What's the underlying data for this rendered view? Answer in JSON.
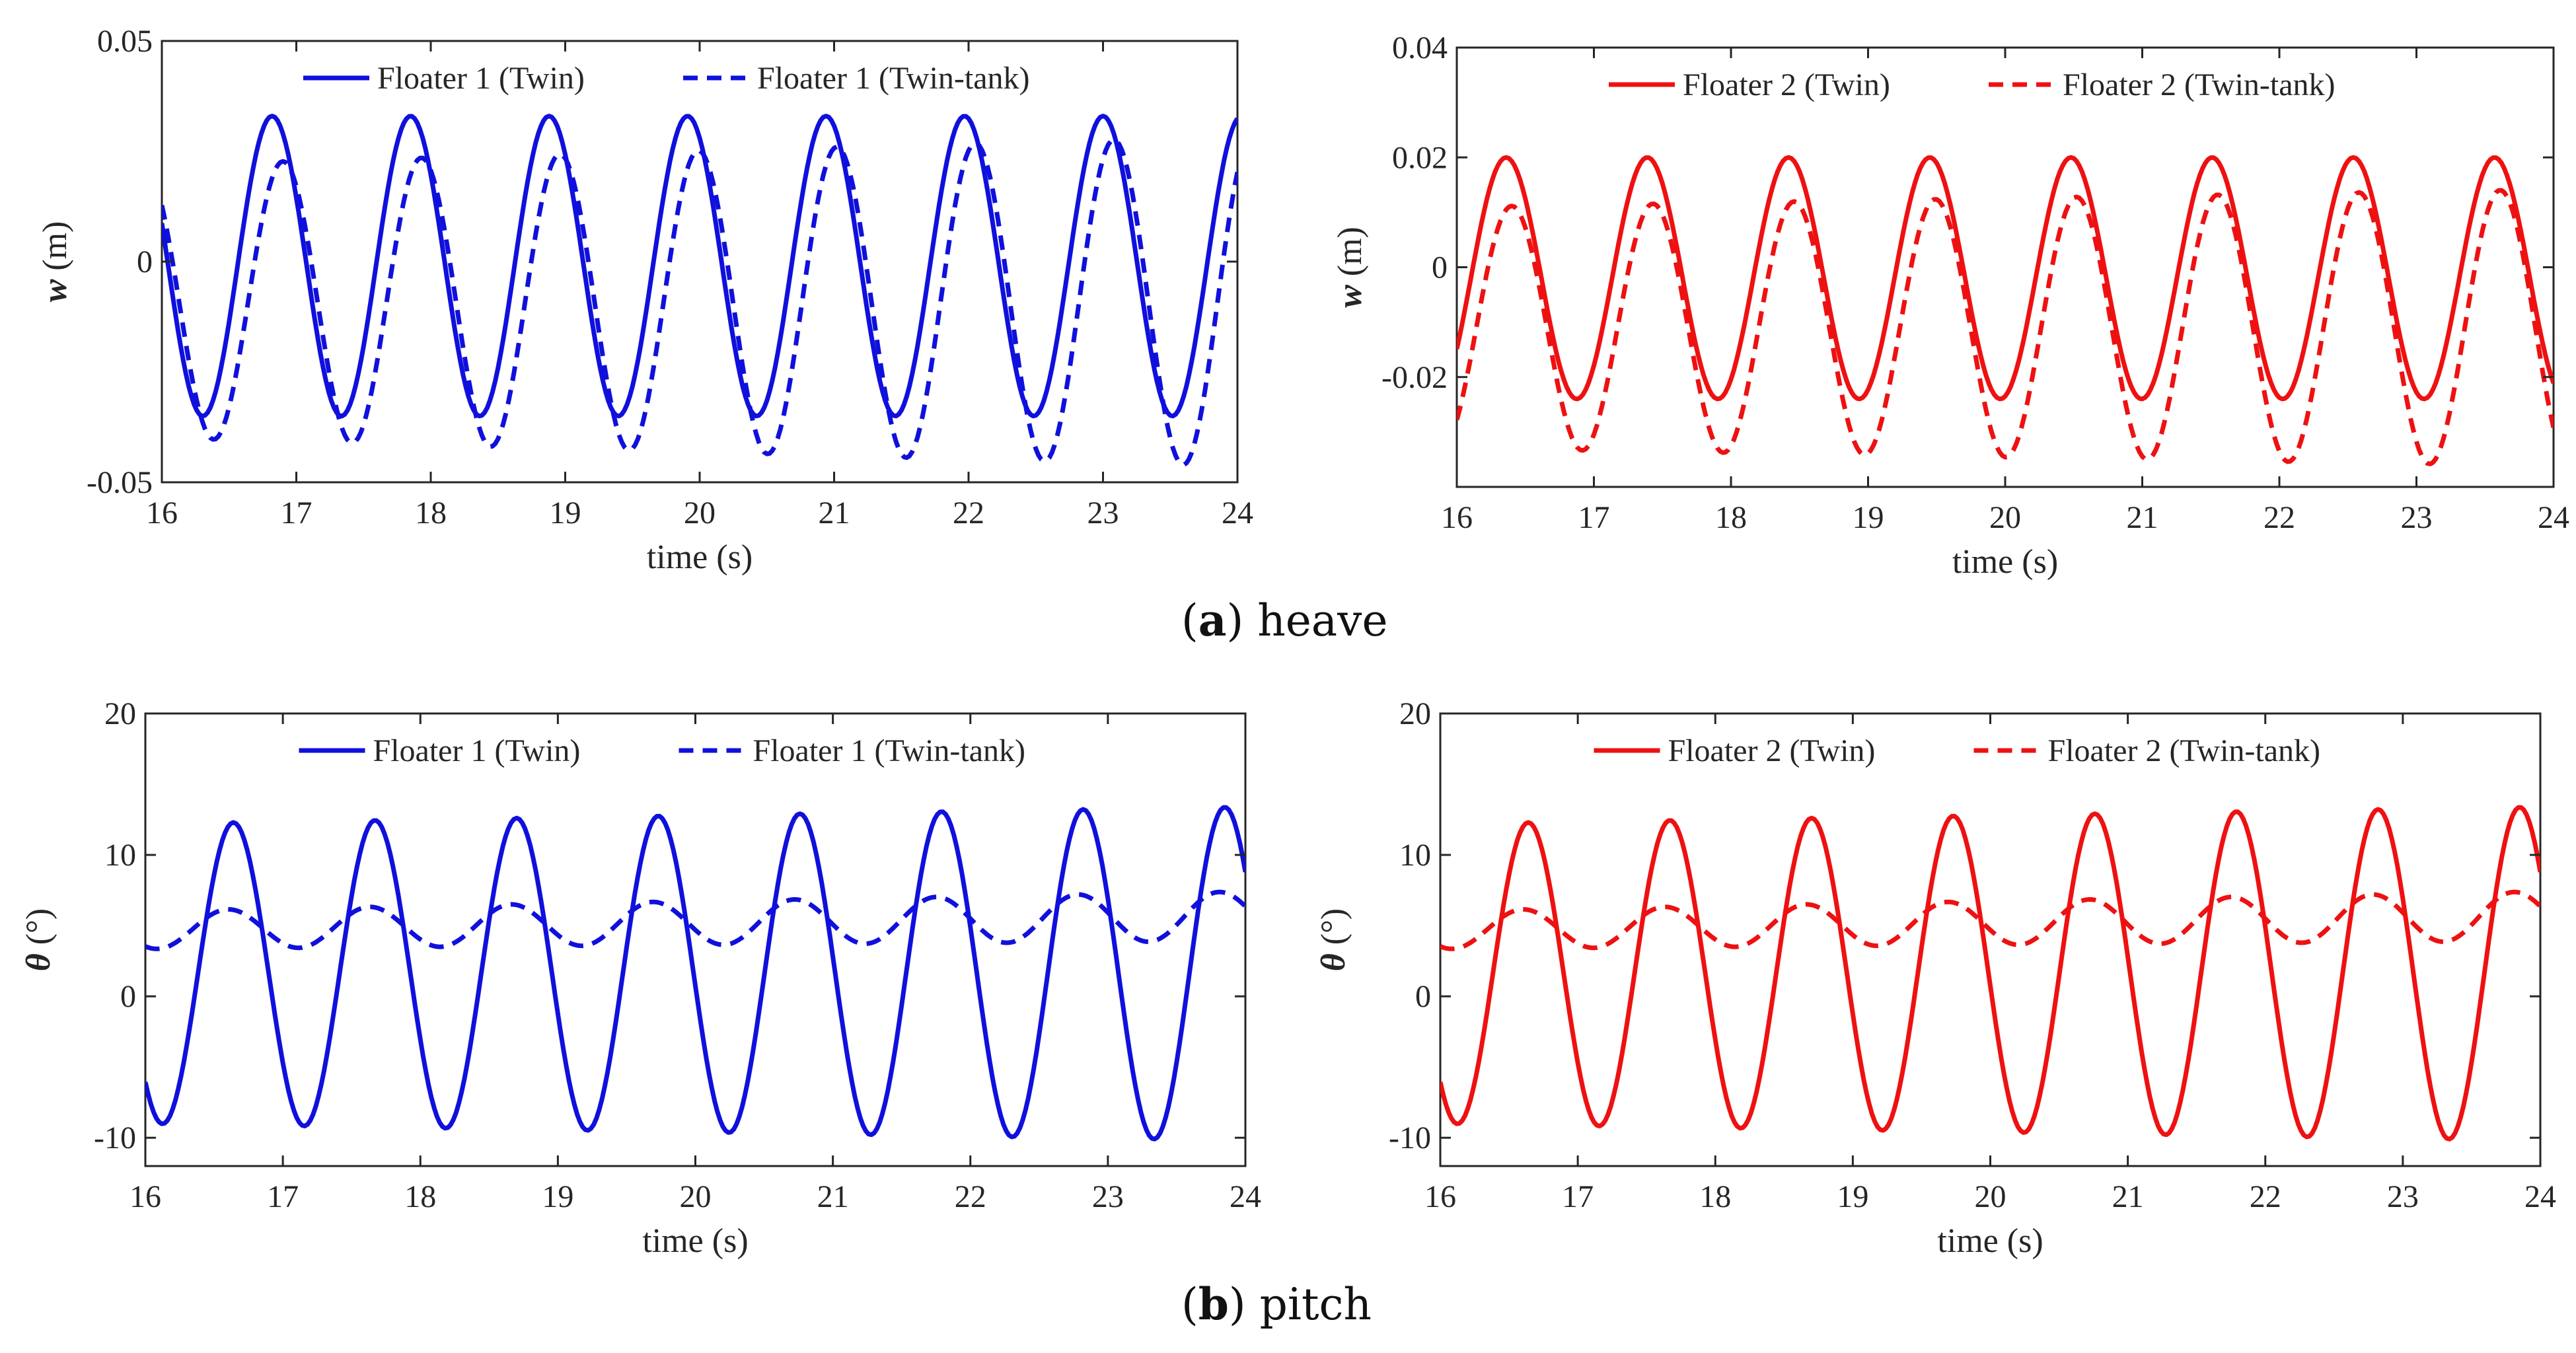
{
  "captions": {
    "a": {
      "letter": "a",
      "text": " heave"
    },
    "b": {
      "letter": "b",
      "text": " pitch"
    }
  },
  "chart_data": [
    {
      "id": "heave-floater1",
      "type": "line",
      "xlabel": "time (s)",
      "ylabel_symbol": "w",
      "ylabel_unit": " (m)",
      "xlim": [
        16,
        24
      ],
      "ylim": [
        -0.05,
        0.05
      ],
      "xticks": [
        "16",
        "17",
        "18",
        "19",
        "20",
        "21",
        "22",
        "23",
        "24"
      ],
      "yticks": [
        "-0.05",
        "0",
        "0.05"
      ],
      "ytick_values": [
        -0.05,
        0,
        0.05
      ],
      "color": "#1010dd",
      "legend": [
        "Floater 1 (Twin)",
        "Floater 1 (Twin-tank)"
      ],
      "series": [
        {
          "name": "Floater 1 (Twin)",
          "style": "solid",
          "params": {
            "mean": -0.001,
            "amp": 0.034,
            "period": 1.03,
            "peak": 16.82,
            "ampGrowth": 0
          }
        },
        {
          "name": "Floater 1 (Twin-tank)",
          "style": "dashed",
          "params": {
            "mean": -0.009,
            "amp": 0.031,
            "period": 1.03,
            "peak": 16.9,
            "ampGrowth": 0.0008
          }
        }
      ]
    },
    {
      "id": "heave-floater2",
      "type": "line",
      "xlabel": "time (s)",
      "ylabel_symbol": "w",
      "ylabel_unit": " (m)",
      "xlim": [
        16,
        24
      ],
      "ylim": [
        -0.04,
        0.04
      ],
      "xticks": [
        "16",
        "17",
        "18",
        "19",
        "20",
        "21",
        "22",
        "23",
        "24"
      ],
      "yticks": [
        "-0.02",
        "0",
        "0.02",
        "0.04"
      ],
      "ytick_values": [
        -0.02,
        0,
        0.02,
        0.04
      ],
      "color": "#ee1111",
      "legend": [
        "Floater 2 (Twin)",
        "Floater 2 (Twin-tank)"
      ],
      "series": [
        {
          "name": "Floater 2 (Twin)",
          "style": "solid",
          "params": {
            "mean": -0.002,
            "amp": 0.022,
            "period": 1.03,
            "peak": 16.36,
            "ampGrowth": 0
          }
        },
        {
          "name": "Floater 2 (Twin-tank)",
          "style": "dashed",
          "params": {
            "mean": -0.011,
            "amp": 0.022,
            "period": 1.03,
            "peak": 16.4,
            "ampGrowth": 0.0004
          }
        }
      ]
    },
    {
      "id": "pitch-floater1",
      "type": "line",
      "xlabel": "time (s)",
      "ylabel_symbol": "θ",
      "ylabel_unit": " (°)",
      "xlim": [
        16,
        24
      ],
      "ylim": [
        -12,
        20
      ],
      "xticks": [
        "16",
        "17",
        "18",
        "19",
        "20",
        "21",
        "22",
        "23",
        "24"
      ],
      "yticks": [
        "-10",
        "0",
        "10",
        "20"
      ],
      "ytick_values": [
        -10,
        0,
        10,
        20
      ],
      "color": "#1010dd",
      "legend": [
        "Floater 1 (Twin)",
        "Floater 1 (Twin-tank)"
      ],
      "series": [
        {
          "name": "Floater 1 (Twin)",
          "style": "solid",
          "params": {
            "mean": 1.6,
            "amp": 10.6,
            "period": 1.03,
            "peak": 16.64,
            "ampGrowth": 0.15
          }
        },
        {
          "name": "Floater 1 (Twin-tank)",
          "style": "dashed",
          "params": {
            "mean": 4.7,
            "amp": 1.35,
            "period": 1.03,
            "peak": 16.6,
            "ampGrowth": 0.05,
            "drift": 0.12
          }
        }
      ]
    },
    {
      "id": "pitch-floater2",
      "type": "line",
      "xlabel": "time (s)",
      "ylabel_symbol": "θ",
      "ylabel_unit": " (°)",
      "xlim": [
        16,
        24
      ],
      "ylim": [
        -12,
        20
      ],
      "xticks": [
        "16",
        "17",
        "18",
        "19",
        "20",
        "21",
        "22",
        "23",
        "24"
      ],
      "yticks": [
        "-10",
        "0",
        "10",
        "20"
      ],
      "ytick_values": [
        -10,
        0,
        10,
        20
      ],
      "color": "#ee1111",
      "legend": [
        "Floater 2 (Twin)",
        "Floater 2 (Twin-tank)"
      ],
      "series": [
        {
          "name": "Floater 2 (Twin)",
          "style": "solid",
          "params": {
            "mean": 1.6,
            "amp": 10.6,
            "period": 1.03,
            "peak": 16.64,
            "ampGrowth": 0.15
          }
        },
        {
          "name": "Floater 2 (Twin-tank)",
          "style": "dashed",
          "params": {
            "mean": 4.7,
            "amp": 1.35,
            "period": 1.03,
            "peak": 16.6,
            "ampGrowth": 0.05,
            "drift": 0.12
          }
        }
      ]
    }
  ]
}
